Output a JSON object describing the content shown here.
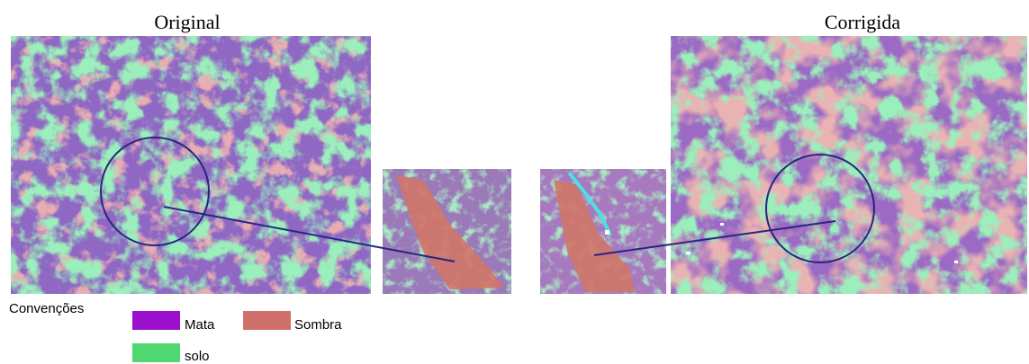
{
  "titles": {
    "original": "Original",
    "corrected": "Corrigida"
  },
  "legend": {
    "title": "Convenções",
    "items": [
      {
        "label": "Mata",
        "color": "#9b10cc"
      },
      {
        "label": "Sombra",
        "color": "#d0706a"
      },
      {
        "label": "solo",
        "color": "#4fd872"
      }
    ]
  }
}
